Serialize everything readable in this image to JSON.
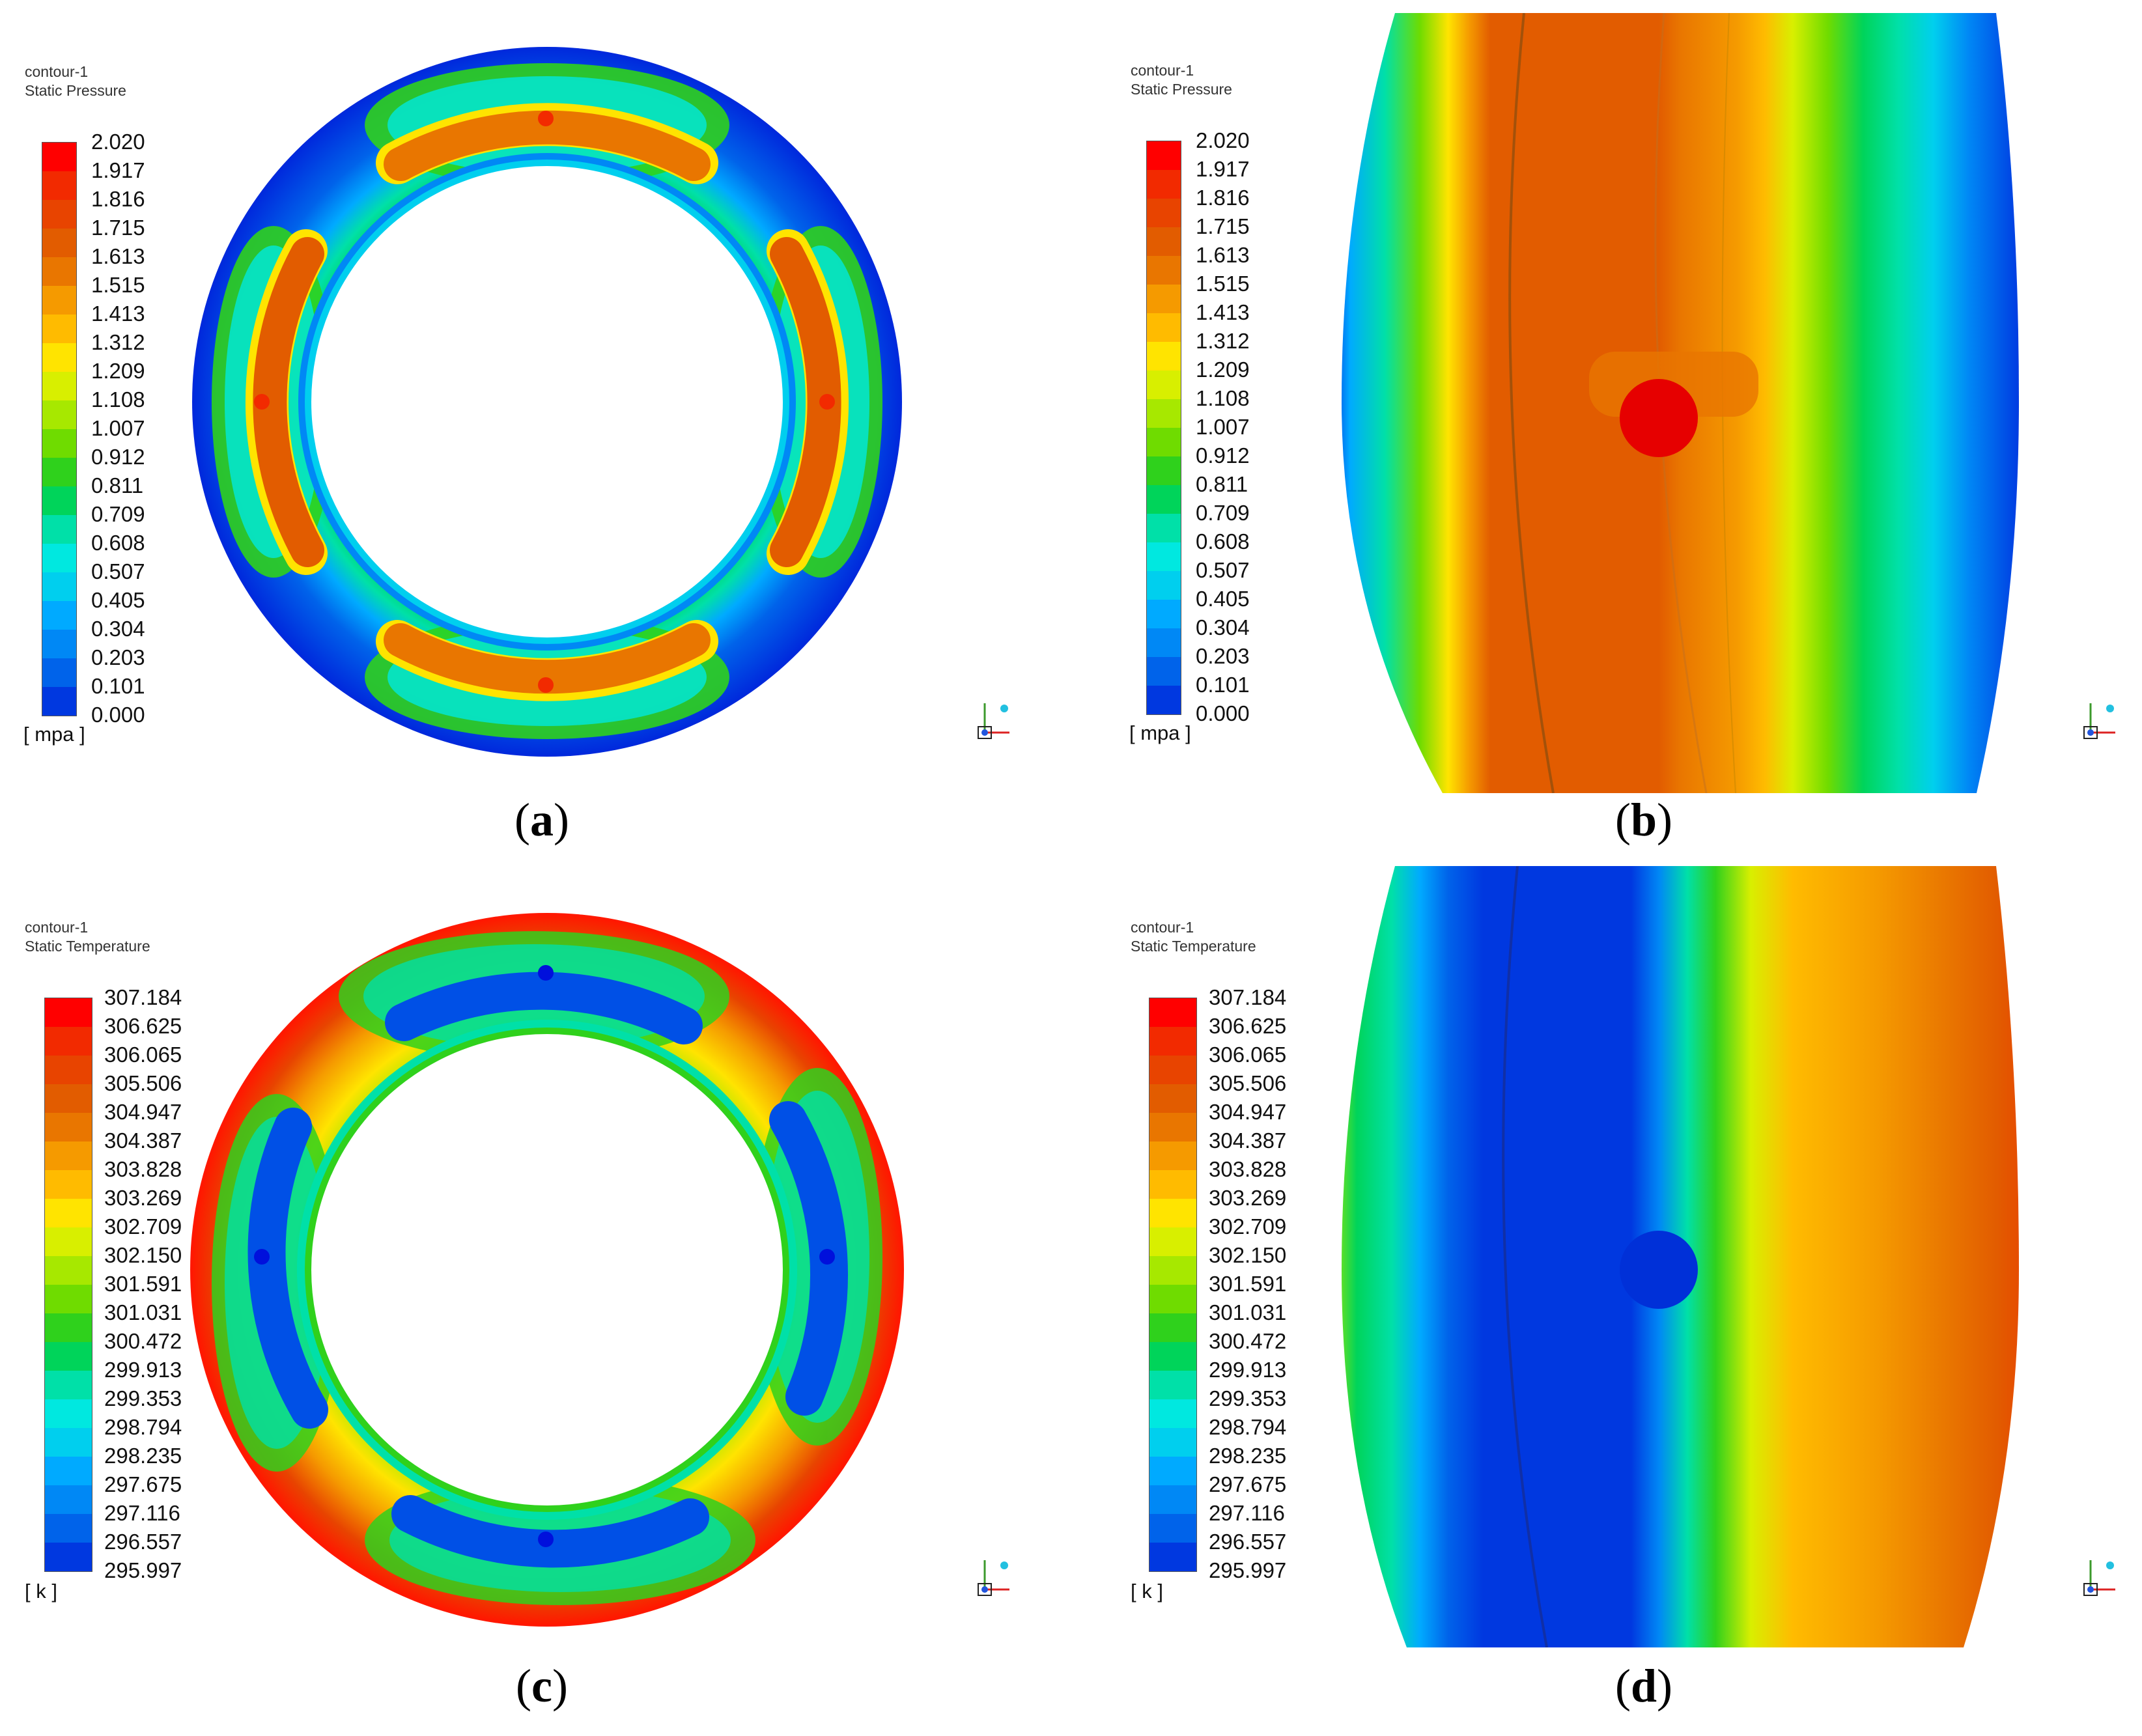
{
  "panels": [
    {
      "id": "a",
      "caption": "a",
      "contour": "contour-1",
      "quantity": "Static Pressure",
      "unit": "[ mpa ]",
      "ticks": [
        "2.020",
        "1.917",
        "1.816",
        "1.715",
        "1.613",
        "1.515",
        "1.413",
        "1.312",
        "1.209",
        "1.108",
        "1.007",
        "0.912",
        "0.811",
        "0.709",
        "0.608",
        "0.507",
        "0.405",
        "0.304",
        "0.203",
        "0.101",
        "0.000"
      ],
      "view": "full bearing ring"
    },
    {
      "id": "b",
      "caption": "b",
      "contour": "contour-1",
      "quantity": "Static Pressure",
      "unit": "[ mpa ]",
      "ticks": [
        "2.020",
        "1.917",
        "1.816",
        "1.715",
        "1.613",
        "1.515",
        "1.413",
        "1.312",
        "1.209",
        "1.108",
        "1.007",
        "0.912",
        "0.811",
        "0.709",
        "0.608",
        "0.507",
        "0.405",
        "0.304",
        "0.203",
        "0.101",
        "0.000"
      ],
      "view": "zoomed ring section"
    },
    {
      "id": "c",
      "caption": "c",
      "contour": "contour-1",
      "quantity": "Static Temperature",
      "unit": "[ k ]",
      "ticks": [
        "307.184",
        "306.625",
        "306.065",
        "305.506",
        "304.947",
        "304.387",
        "303.828",
        "303.269",
        "302.709",
        "302.150",
        "301.591",
        "301.031",
        "300.472",
        "299.913",
        "299.353",
        "298.794",
        "298.235",
        "297.675",
        "297.116",
        "296.557",
        "295.997"
      ],
      "view": "full bearing ring"
    },
    {
      "id": "d",
      "caption": "d",
      "contour": "contour-1",
      "quantity": "Static Temperature",
      "unit": "[ k ]",
      "ticks": [
        "307.184",
        "306.625",
        "306.065",
        "305.506",
        "304.947",
        "304.387",
        "303.828",
        "303.269",
        "302.709",
        "302.150",
        "301.591",
        "301.031",
        "300.472",
        "299.913",
        "299.353",
        "298.794",
        "298.235",
        "297.675",
        "297.116",
        "296.557",
        "295.997"
      ],
      "view": "zoomed ring section"
    }
  ],
  "colormap": [
    "#ff0000",
    "#f22a00",
    "#e84400",
    "#e25c00",
    "#e97600",
    "#f59a00",
    "#ffbb00",
    "#ffe400",
    "#d8ef00",
    "#a7e800",
    "#6fdc00",
    "#2fd11c",
    "#00d45a",
    "#00e0a8",
    "#00e8e0",
    "#00cfee",
    "#00aaff",
    "#0088f5",
    "#0063ea",
    "#0038e0",
    "#0010dc"
  ],
  "triad_icon": "axis-triad-icon"
}
